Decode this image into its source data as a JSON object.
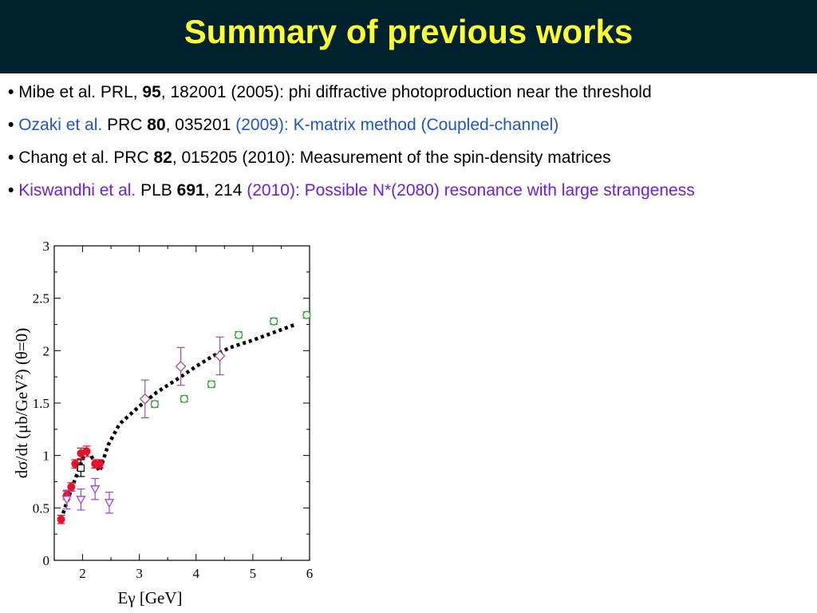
{
  "title": "Summary of previous works",
  "bullets": [
    {
      "parts": [
        {
          "text": "Mibe et al. PRL, ",
          "color": "black",
          "bold": false
        },
        {
          "text": "95",
          "color": "black",
          "bold": true
        },
        {
          "text": ", 182001  (2005): phi diffractive photoproduction near the threshold",
          "color": "black",
          "bold": false
        }
      ]
    },
    {
      "parts": [
        {
          "text": "Ozaki et al. ",
          "color": "blue",
          "bold": false
        },
        {
          "text": "PRC ",
          "color": "black",
          "bold": false
        },
        {
          "text": "80",
          "color": "black",
          "bold": true
        },
        {
          "text": ", 035201 ",
          "color": "black",
          "bold": false
        },
        {
          "text": "(2009):  K-matrix method (Coupled-channel)",
          "color": "blue",
          "bold": false
        }
      ]
    },
    {
      "parts": [
        {
          "text": "Chang et al. PRC ",
          "color": "black",
          "bold": false
        },
        {
          "text": "82",
          "color": "black",
          "bold": true
        },
        {
          "text": ", 015205 (2010): Measurement of the spin-density matrices",
          "color": "black",
          "bold": false
        }
      ]
    },
    {
      "parts": [
        {
          "text": "Kiswandhi et al. ",
          "color": "purple",
          "bold": false
        },
        {
          "text": "PLB ",
          "color": "black",
          "bold": false
        },
        {
          "text": "691",
          "color": "black",
          "bold": true
        },
        {
          "text": ", 214 ",
          "color": "black",
          "bold": false
        },
        {
          "text": "(2010): Possible N*(2080) resonance with large strangeness",
          "color": "purple",
          "bold": false
        }
      ]
    }
  ],
  "colors": {
    "header_bg": "#00212e",
    "title": "#ffff33",
    "blue": "#1f55c8",
    "purple": "#6a1ee6",
    "red": "#e8102a",
    "violet": "#a040d8",
    "green": "#30a030",
    "plum": "#a05090",
    "square": "#000000"
  },
  "chart_data": {
    "type": "scatter",
    "xlabel": "Eγ [GeV]",
    "ylabel": "dσ/dt (μb/GeV²) (θ=0)",
    "xlim": [
      1.5,
      6
    ],
    "ylim": [
      0,
      3
    ],
    "xticks": [
      "2",
      "3",
      "4",
      "5",
      "6"
    ],
    "yticks": [
      "0",
      "0.5",
      "1",
      "1.5",
      "2",
      "2.5",
      "3"
    ],
    "series": [
      {
        "marker": "circle-filled",
        "color": "red",
        "points": [
          [
            1.62,
            0.39,
            0.04
          ],
          [
            1.72,
            0.62,
            0.04
          ],
          [
            1.8,
            0.7,
            0.04
          ],
          [
            1.87,
            0.92,
            0.04
          ],
          [
            1.97,
            1.02,
            0.05
          ],
          [
            2.07,
            1.04,
            0.05
          ],
          [
            2.22,
            0.92,
            0.04
          ],
          [
            2.3,
            0.92,
            0.04
          ]
        ]
      },
      {
        "marker": "triangle-down",
        "color": "violet",
        "points": [
          [
            1.72,
            0.58,
            0.09
          ],
          [
            1.97,
            0.58,
            0.1
          ],
          [
            2.22,
            0.68,
            0.1
          ],
          [
            2.47,
            0.55,
            0.1
          ]
        ]
      },
      {
        "marker": "square",
        "color": "square",
        "points": [
          [
            1.97,
            0.88,
            0.08
          ]
        ]
      },
      {
        "marker": "diamond",
        "color": "plum",
        "points": [
          [
            3.1,
            1.54,
            0.18
          ],
          [
            3.73,
            1.85,
            0.18
          ],
          [
            4.42,
            1.95,
            0.18
          ]
        ]
      },
      {
        "marker": "circle-open",
        "color": "green",
        "points": [
          [
            3.27,
            1.49,
            0.03
          ],
          [
            3.79,
            1.54,
            0.03
          ],
          [
            4.27,
            1.68,
            0.03
          ],
          [
            4.75,
            2.15,
            0.03
          ],
          [
            5.37,
            2.28,
            0.03
          ],
          [
            5.95,
            2.34,
            0.03
          ]
        ]
      }
    ],
    "curve": {
      "style": "dotted",
      "x": [
        1.62,
        1.75,
        1.9,
        2.0,
        2.07,
        2.15,
        2.22,
        2.3,
        2.45,
        2.65,
        3.0,
        3.3,
        3.7,
        4.0,
        4.3,
        4.6,
        5.0,
        5.4,
        5.75
      ],
      "y": [
        0.39,
        0.6,
        0.82,
        0.97,
        1.02,
        1.0,
        0.92,
        0.85,
        1.1,
        1.3,
        1.47,
        1.6,
        1.74,
        1.85,
        1.95,
        2.03,
        2.1,
        2.18,
        2.25
      ]
    }
  }
}
